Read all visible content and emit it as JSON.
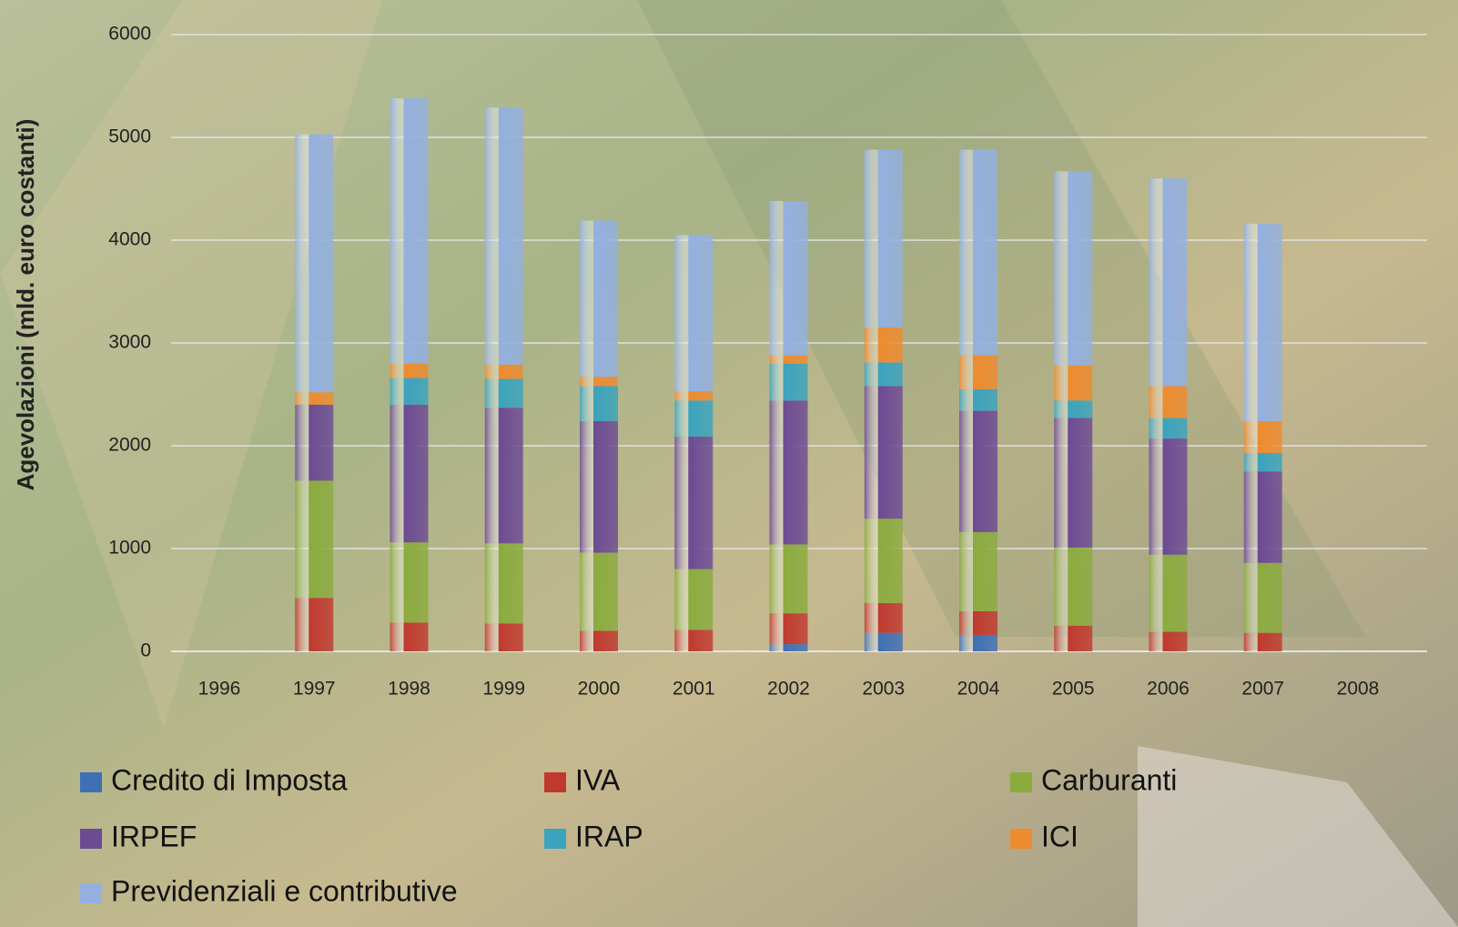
{
  "chart_data": {
    "type": "bar",
    "stacked": true,
    "y_label": "Agevolazioni (mld. euro costanti)",
    "categories": [
      "1996",
      "1997",
      "1998",
      "1999",
      "2000",
      "2001",
      "2002",
      "2003",
      "2004",
      "2005",
      "2006",
      "2007",
      "2008"
    ],
    "ylim": [
      0,
      6000
    ],
    "yticks": [
      0,
      1000,
      2000,
      3000,
      4000,
      5000,
      6000
    ],
    "grid": true,
    "series": [
      {
        "name": "Credito di Imposta",
        "color": "#3f6fb5",
        "values": [
          null,
          0,
          0,
          0,
          0,
          0,
          70,
          180,
          160,
          0,
          0,
          0,
          null
        ]
      },
      {
        "name": "IVA",
        "color": "#c0392f",
        "values": [
          null,
          520,
          280,
          270,
          200,
          210,
          300,
          290,
          230,
          250,
          190,
          180,
          null
        ]
      },
      {
        "name": "Carburanti",
        "color": "#8bab3e",
        "values": [
          null,
          1140,
          780,
          780,
          760,
          590,
          670,
          820,
          770,
          760,
          750,
          680,
          null
        ]
      },
      {
        "name": "IRPEF",
        "color": "#6d4a94",
        "values": [
          null,
          740,
          1340,
          1320,
          1280,
          1290,
          1400,
          1290,
          1180,
          1260,
          1130,
          890,
          null
        ]
      },
      {
        "name": "IRAP",
        "color": "#3aa3be",
        "values": [
          null,
          0,
          260,
          280,
          340,
          350,
          360,
          230,
          210,
          170,
          200,
          180,
          null
        ]
      },
      {
        "name": "ICI",
        "color": "#ee8b2f",
        "values": [
          null,
          120,
          140,
          140,
          90,
          90,
          80,
          340,
          330,
          340,
          310,
          310,
          null
        ]
      },
      {
        "name": "Previdenziali e contributive",
        "color": "#93b0e0",
        "values": [
          null,
          2510,
          2580,
          2500,
          1520,
          1520,
          1500,
          1730,
          2000,
          1890,
          2020,
          1920,
          null
        ]
      }
    ]
  }
}
